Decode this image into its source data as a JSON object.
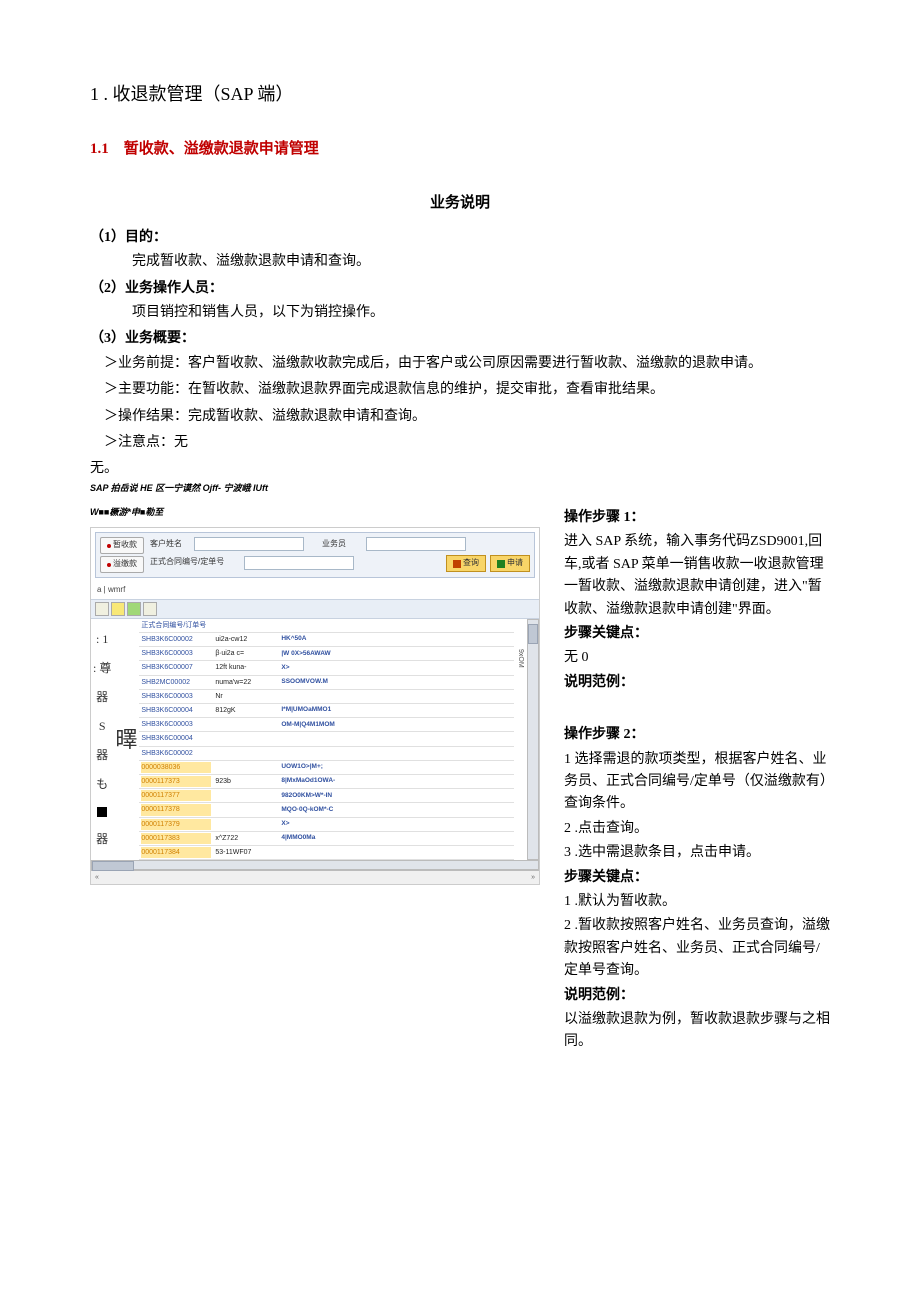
{
  "title": "1 . 收退款管理（SAP 端）",
  "section": "1.1　暂收款、溢缴款退款申请管理",
  "biz_title": "业务说明",
  "p1_label": "（1）目的：",
  "p1_text": "完成暂收款、溢缴款退款申请和查询。",
  "p2_label": "（2）业务操作人员：",
  "p2_text": "项目销控和销售人员，以下为销控操作。",
  "p3_label": "（3）业务概要：",
  "p3_a": "＞业务前提：客户暂收款、溢缴款收款完成后，由于客户或公司原因需要进行暂收款、溢缴款的退款申请。",
  "p3_b": "＞主要功能：在暂收款、溢缴款退款界面完成退款信息的维护，提交审批，查看审批结果。",
  "p3_c": "＞操作结果：完成暂收款、溢缴款退款申请和查询。",
  "p3_d": "＞注意点：无",
  "p3_e": "无。",
  "caption1": "SAP 拍岳说 HE 区一宁谟然 Ojff- 宁波峨 IUft",
  "caption2": "W■■橛游*申■勒至",
  "filter": {
    "opt1": "暂收款",
    "opt2": "溢缴款",
    "label_name": "客户姓名",
    "label_contract": "正式合同编号/定单号",
    "label_sales": "业务员",
    "btn_query": "查询",
    "btn_apply": "申请"
  },
  "breadcrumb": "a | wmrf",
  "side_chars": [
    ": 1",
    ": 尊",
    "器",
    "S",
    "器",
    "も",
    "■",
    "器"
  ],
  "side_big": "曎",
  "grid_rows": [
    {
      "code": "正式合同编号/订单号",
      "mid": "",
      "right": ""
    },
    {
      "code": "SHB3K6C00002",
      "mid": "ui2a-cw12",
      "right": "HK^50A"
    },
    {
      "code": "SHB3K6C00003",
      "mid": "β∙ui2a c=",
      "right": "|W 0X>56AWAW"
    },
    {
      "code": "SHB3K6C00007",
      "mid": "12ft kuna-",
      "right": "X>"
    },
    {
      "code": "SHB2MC00002",
      "mid": "numa'w=22",
      "right": "SSOOMVOW.M"
    },
    {
      "code": "SHB3K6C00003",
      "mid": "Nr",
      "right": ""
    },
    {
      "code": "SHB3K6C00004",
      "mid": "812gK",
      "right": "I*M|UMOaMMO1"
    },
    {
      "code": "SHB3K6C00003",
      "mid": "",
      "right": "OM-M|Q4M1MOM"
    },
    {
      "code": "SHB3K6C00004",
      "mid": "",
      "right": ""
    },
    {
      "code": "SHB3K6C00002",
      "mid": "",
      "right": ""
    }
  ],
  "grid_rows_orange": [
    {
      "code": "0000038036",
      "mid": "",
      "right": "UOW1O>|M+;"
    },
    {
      "code": "0000117373",
      "mid": "923b",
      "right": "8|MxMaOd1OWA-"
    },
    {
      "code": "0000117377",
      "mid": "",
      "right": "982O0KM>W*-IN"
    },
    {
      "code": "0000117378",
      "mid": "",
      "right": "MQO·0Q-kOM*-C"
    },
    {
      "code": "0000117379",
      "mid": "",
      "right": "X>"
    },
    {
      "code": "0000117383",
      "mid": "x^Z722",
      "right": "4|MMO0Ma"
    },
    {
      "code": "0000117384",
      "mid": "53-11WF07",
      "right": ""
    }
  ],
  "vside_text": "9xOM",
  "status_left": "«",
  "status_right": "»",
  "step1": {
    "heading": "操作步骤 1：",
    "t1": "进入 SAP 系统，输入事务代码ZSD9001,回车,或者 SAP 菜单一销售收款一收退款管理一暂收款、溢缴款退款申请创建，进入\"暂收款、溢缴款退款申请创建\"界面。",
    "kp_h": "步骤关键点：",
    "kp_t": "无 0",
    "ex_h": "说明范例："
  },
  "step2": {
    "heading": "操作步骤 2：",
    "t1": "1 选择需退的款项类型，根据客户姓名、业务员、正式合同编号/定单号（仅溢缴款有）查询条件。",
    "t2": "2 .点击查询。",
    "t3": "3 .选中需退款条目，点击申请。",
    "kp_h": "步骤关键点：",
    "kp1": "1 .默认为暂收款。",
    "kp2": "2 .暂收款按照客户姓名、业务员查询，溢缴款按照客户姓名、业务员、正式合同编号/定单号查询。",
    "ex_h": "说明范例：",
    "ex_t": "以溢缴款退款为例，暂收款退款步骤与之相同。"
  }
}
